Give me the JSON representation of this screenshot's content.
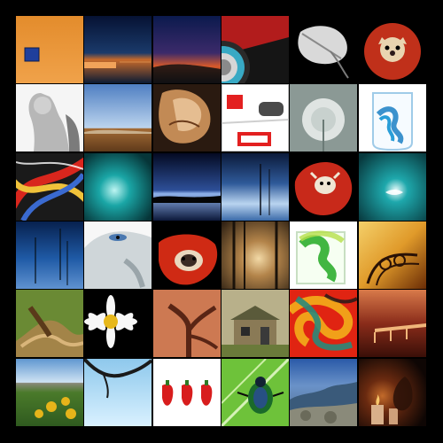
{
  "mosaic": {
    "rows": 6,
    "cols": 6,
    "tiles": [
      {
        "subject": "orange-wall-blue-window",
        "colors": [
          "#e8902e",
          "#d9731f",
          "#1f3f9c"
        ]
      },
      {
        "subject": "dusk-lake-pier",
        "colors": [
          "#0b1e4d",
          "#3a5a8a",
          "#d8823a"
        ]
      },
      {
        "subject": "sunset-sky",
        "colors": [
          "#142a6b",
          "#7a2a45",
          "#e36a2e"
        ]
      },
      {
        "subject": "stained-glass-circle",
        "colors": [
          "#1a1a1a",
          "#c31d1d",
          "#38a9c4"
        ]
      },
      {
        "subject": "white-leaf",
        "colors": [
          "#000000",
          "#d9d9d9",
          "#9a9a9a"
        ]
      },
      {
        "subject": "dog-on-red-chair",
        "colors": [
          "#000000",
          "#c0301a",
          "#e9d4b0"
        ]
      },
      {
        "subject": "angel-statue",
        "colors": [
          "#f2f2f2",
          "#b6b6b6",
          "#6e6e6e"
        ]
      },
      {
        "subject": "blue-sky-field",
        "colors": [
          "#5e88c8",
          "#b8cfe8",
          "#8a5c30"
        ]
      },
      {
        "subject": "sculpture-face",
        "colors": [
          "#2a1a10",
          "#c28a55",
          "#eec9a0"
        ]
      },
      {
        "subject": "board-game-piece",
        "colors": [
          "#ffffff",
          "#e32020",
          "#2b2b2b"
        ]
      },
      {
        "subject": "dandelion-seed-head",
        "colors": [
          "#7e8f8a",
          "#e8ecea",
          "#aeb9b5"
        ]
      },
      {
        "subject": "blue-ink-in-water",
        "colors": [
          "#ffffff",
          "#2a9ed8",
          "#0e5f99"
        ]
      },
      {
        "subject": "abstract-paint-lines",
        "colors": [
          "#d8261d",
          "#f0c23a",
          "#3a6ad0"
        ]
      },
      {
        "subject": "teal-underwater-glow",
        "colors": [
          "#0a4a4d",
          "#1aa6a6",
          "#c9f4f2"
        ]
      },
      {
        "subject": "twilight-lake",
        "colors": [
          "#060d2a",
          "#2d4f98",
          "#93b4e8"
        ]
      },
      {
        "subject": "calm-water-reeds",
        "colors": [
          "#0b1a3a",
          "#2f5a9a",
          "#b9d4f0"
        ]
      },
      {
        "subject": "dog-in-red-chair",
        "colors": [
          "#000000",
          "#c8291a",
          "#efe6d4"
        ]
      },
      {
        "subject": "teal-water-figure",
        "colors": [
          "#0c4f57",
          "#1ea8ac",
          "#e9fbfb"
        ]
      },
      {
        "subject": "blue-water-stems",
        "colors": [
          "#0a2a6a",
          "#1f5aa6",
          "#5f92d0"
        ]
      },
      {
        "subject": "wolf-eye-closeup",
        "colors": [
          "#ffffff",
          "#cdd5d8",
          "#4a78b0"
        ]
      },
      {
        "subject": "puppy-on-red-cushion",
        "colors": [
          "#cf2a14",
          "#e9d8be",
          "#3a2a22"
        ]
      },
      {
        "subject": "misty-forest-sun",
        "colors": [
          "#2f2113",
          "#b3844a",
          "#f2d9a6"
        ]
      },
      {
        "subject": "green-ink-in-glass",
        "colors": [
          "#ffffff",
          "#2fae2f",
          "#b7e04a"
        ]
      },
      {
        "subject": "iron-railing-autumn",
        "colors": [
          "#8a3f08",
          "#e09a2a",
          "#f4d06a"
        ]
      },
      {
        "subject": "twisted-tree-trunk",
        "colors": [
          "#5c7a2a",
          "#a38448",
          "#d9b57a"
        ]
      },
      {
        "subject": "white-daisy",
        "colors": [
          "#000000",
          "#f7f7f7",
          "#e7b81b"
        ]
      },
      {
        "subject": "red-bark-tree",
        "colors": [
          "#b64724",
          "#e09065",
          "#3a1a10"
        ]
      },
      {
        "subject": "old-cabin",
        "colors": [
          "#6a6a3a",
          "#a89a72",
          "#d8d0b0"
        ]
      },
      {
        "subject": "red-green-ink-swirl",
        "colors": [
          "#e02412",
          "#f1a81a",
          "#2a8a7a"
        ]
      },
      {
        "subject": "pier-at-dusk",
        "colors": [
          "#8a2c1a",
          "#d06a3a",
          "#f0b67a"
        ]
      },
      {
        "subject": "sunflower-meadow-mountains",
        "colors": [
          "#6aa2d8",
          "#4a7a2a",
          "#e6b41a"
        ]
      },
      {
        "subject": "tree-branch-sky",
        "colors": [
          "#8ec8ec",
          "#c9e6f7",
          "#1a1a1a"
        ]
      },
      {
        "subject": "three-red-peppers",
        "colors": [
          "#ffffff",
          "#d81d1d",
          "#2f7a22"
        ]
      },
      {
        "subject": "beetle-on-leaf",
        "colors": [
          "#6ec23a",
          "#1a6a2a",
          "#2a4a9a"
        ]
      },
      {
        "subject": "blue-mountain-valley",
        "colors": [
          "#2a5aa8",
          "#6a92c8",
          "#8a8a7a"
        ]
      },
      {
        "subject": "dark-candle-scene",
        "colors": [
          "#1a0a06",
          "#6a2a10",
          "#c26a2a"
        ]
      }
    ]
  }
}
